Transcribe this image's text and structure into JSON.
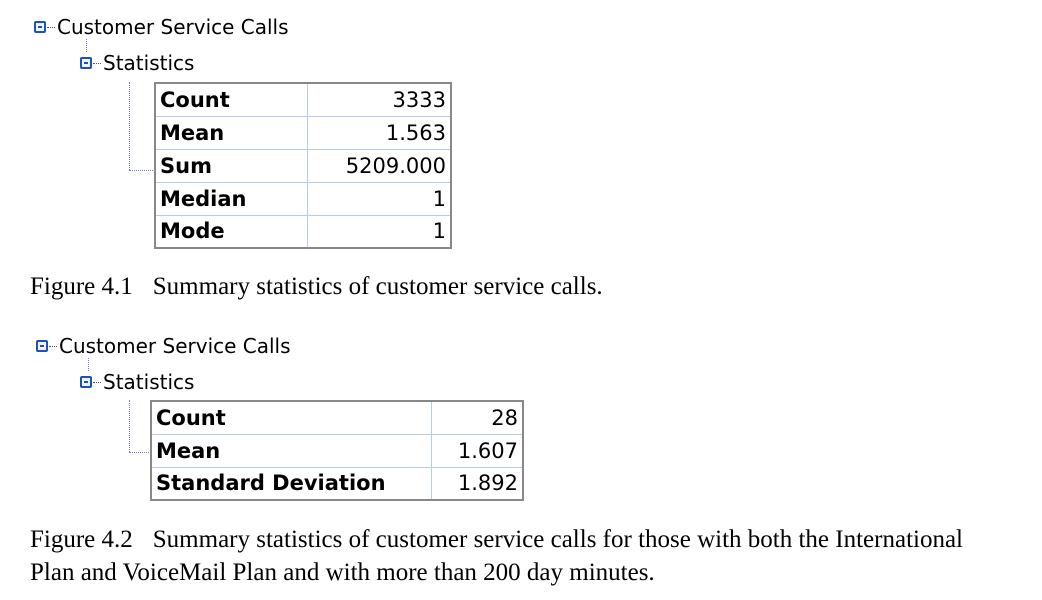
{
  "figure1": {
    "tree_root": "Customer Service Calls",
    "tree_child": "Statistics",
    "rows": [
      {
        "label": "Count",
        "value": "3333"
      },
      {
        "label": "Mean",
        "value": "1.563"
      },
      {
        "label": "Sum",
        "value": "5209.000"
      },
      {
        "label": "Median",
        "value": "1"
      },
      {
        "label": "Mode",
        "value": "1"
      }
    ],
    "caption_number": "Figure 4.1",
    "caption_text": "Summary statistics of customer service calls."
  },
  "figure2": {
    "tree_root": "Customer Service Calls",
    "tree_child": "Statistics",
    "rows": [
      {
        "label": "Count",
        "value": "28"
      },
      {
        "label": "Mean",
        "value": "1.607"
      },
      {
        "label": "Standard Deviation",
        "value": "1.892"
      }
    ],
    "caption_number": "Figure 4.2",
    "caption_text": "Summary statistics of customer service calls for those with both the International",
    "caption_line2": "Plan and VoiceMail Plan and with more than 200 day minutes."
  },
  "icons": {
    "collapse": "collapse-box-icon"
  },
  "colors": {
    "tree_icon": "#1f52b8",
    "grid": "#b9c9e8"
  }
}
